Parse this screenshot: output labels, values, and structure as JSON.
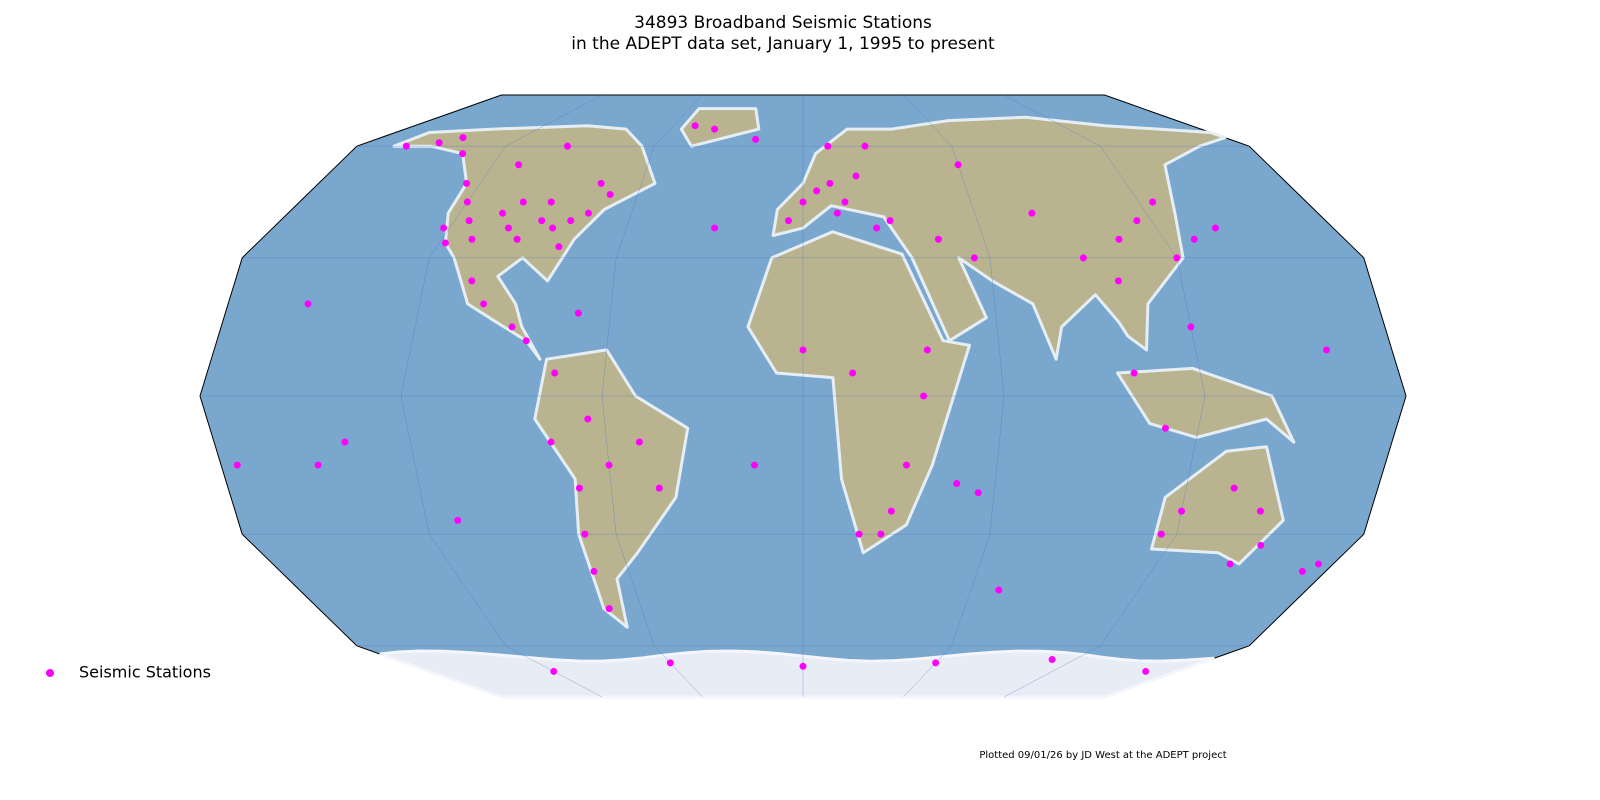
{
  "chart_data": {
    "type": "scatter",
    "title": "34893 Broadband Seismic Stations",
    "subtitle": "in the ADEPT data set, January 1, 1995 to present",
    "annotation": "Plotted 09/01/26 by JD West at the ADEPT project",
    "xlim": [
      -180,
      180
    ],
    "ylim": [
      -90,
      90
    ],
    "x": [
      -120,
      -115,
      -110,
      -105,
      -100,
      -95,
      -90,
      -85,
      -80,
      -75,
      -122,
      -118,
      -100,
      -90,
      -80,
      -150,
      -145,
      -160,
      -135,
      -110,
      -95,
      -75,
      -70,
      -125,
      -100,
      -105,
      -90,
      -85,
      -70,
      -77,
      -70,
      -70,
      -72,
      -72,
      -60,
      -50,
      -45,
      -65,
      -75,
      0,
      5,
      10,
      15,
      20,
      25,
      -5,
      12,
      25,
      30,
      10,
      -20,
      38,
      36,
      32,
      28,
      25,
      18,
      0,
      15,
      45,
      55,
      60,
      80,
      90,
      100,
      105,
      115,
      120,
      140,
      130,
      100,
      110,
      120,
      125,
      115,
      120,
      135,
      145,
      150,
      145,
      172,
      175,
      -155,
      -150,
      -175,
      -140,
      160,
      -110,
      -30,
      -15,
      55,
      48,
      70,
      -60,
      0,
      60,
      110,
      165,
      -120,
      -40,
      -50
    ],
    "series": [
      {
        "name": "Seismic Stations",
        "color": "#ff00ff",
        "values": [
          45,
          40,
          35,
          42,
          38,
          35,
          40,
          38,
          40,
          42,
          38,
          34,
          45,
          45,
          33,
          62,
          65,
          60,
          58,
          55,
          60,
          50,
          47,
          50,
          20,
          25,
          15,
          12,
          18,
          -10,
          -20,
          -30,
          -40,
          -50,
          -15,
          -10,
          -20,
          -5,
          5,
          45,
          48,
          50,
          45,
          52,
          60,
          40,
          42,
          38,
          40,
          60,
          64,
          10,
          0,
          -15,
          -25,
          -30,
          -30,
          10,
          5,
          35,
          30,
          55,
          42,
          30,
          25,
          35,
          40,
          30,
          38,
          35,
          5,
          -7,
          15,
          45,
          -30,
          -25,
          -20,
          -25,
          -33,
          -38,
          -40,
          -38,
          20,
          -15,
          -15,
          -10,
          10,
          -27,
          38,
          -15,
          -21,
          -19,
          -45,
          -70,
          -72,
          -70,
          -68,
          -75,
          -75,
          70,
          72
        ]
      }
    ],
    "legend": "lower left"
  }
}
